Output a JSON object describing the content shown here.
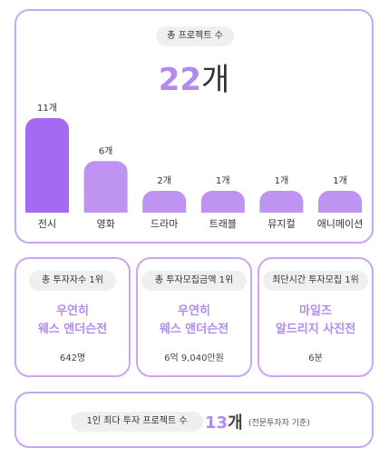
{
  "header": {
    "pill": "총 프로젝트 수",
    "total_num": "22",
    "total_unit": "개"
  },
  "chart_data": {
    "type": "bar",
    "categories": [
      "전시",
      "영화",
      "드라마",
      "트래블",
      "뮤지컬",
      "애니메이션"
    ],
    "values": [
      11,
      6,
      2,
      1,
      1,
      1
    ],
    "value_labels": [
      "11개",
      "6개",
      "2개",
      "1개",
      "1개",
      "1개"
    ],
    "colors": [
      "#a66af2",
      "#bf93f2",
      "#bf93f2",
      "#bf93f2",
      "#bf93f2",
      "#bf93f2"
    ],
    "title": "",
    "xlabel": "",
    "ylabel": "",
    "grid": false
  },
  "stats": [
    {
      "pill": "총 투자자수 1위",
      "name_line1": "우연히",
      "name_line2": "웨스 앤더슨전",
      "value": "642명"
    },
    {
      "pill": "총 투자모집금액 1위",
      "name_line1": "우연히",
      "name_line2": "웨스 앤더슨전",
      "value": "6억 9,040만원"
    },
    {
      "pill": "최단시간 투자모집 1위",
      "name_line1": "마일즈",
      "name_line2": "알드리지 사진전",
      "value": "6분"
    }
  ],
  "bottom": {
    "pill": "1인 최다 투자 프로젝트 수",
    "num": "13",
    "unit": "개",
    "note": "(전문투자자 기준)"
  },
  "colors": {
    "accent": "#b38af0",
    "border": "#c9a6f4",
    "pill_bg": "#efefef"
  }
}
